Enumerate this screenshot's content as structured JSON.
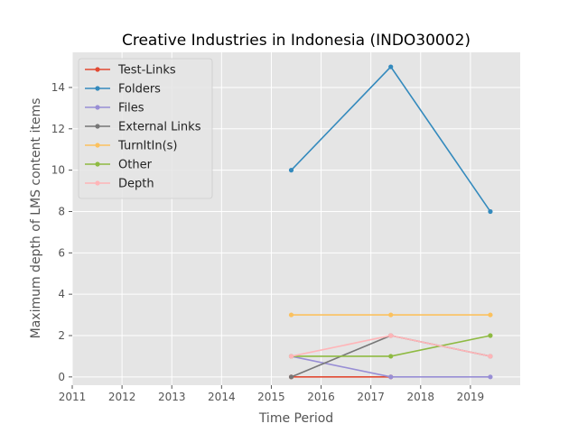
{
  "chart_data": {
    "type": "line",
    "title": "Creative Industries in Indonesia (INDO30002)",
    "xlabel": "Time Period",
    "ylabel": "Maximum depth of LMS content items",
    "xlim": [
      2011,
      2020
    ],
    "ylim": [
      -0.4,
      15.7
    ],
    "xticks": [
      2011,
      2012,
      2013,
      2014,
      2015,
      2016,
      2017,
      2018,
      2019
    ],
    "yticks": [
      0,
      2,
      4,
      6,
      8,
      10,
      12,
      14
    ],
    "grid": true,
    "legend_position": "top-left",
    "x": [
      2015.4,
      2017.4,
      2019.4
    ],
    "series": [
      {
        "name": "Test-Links",
        "color": "#E24A33",
        "x": [
          2015.4,
          2017.4
        ],
        "values": [
          0,
          0
        ]
      },
      {
        "name": "Folders",
        "color": "#348ABD",
        "x": [
          2015.4,
          2017.4,
          2019.4
        ],
        "values": [
          10,
          15,
          8
        ]
      },
      {
        "name": "Files",
        "color": "#988ED5",
        "x": [
          2015.4,
          2017.4,
          2019.4
        ],
        "values": [
          1,
          0,
          0
        ]
      },
      {
        "name": "External Links",
        "color": "#777777",
        "x": [
          2015.4,
          2017.4,
          2019.4
        ],
        "values": [
          0,
          2,
          1
        ]
      },
      {
        "name": "TurnItIn(s)",
        "color": "#FBC15E",
        "x": [
          2015.4,
          2017.4,
          2019.4
        ],
        "values": [
          3,
          3,
          3
        ]
      },
      {
        "name": "Other",
        "color": "#8EBA42",
        "x": [
          2015.4,
          2017.4,
          2019.4
        ],
        "values": [
          1,
          1,
          2
        ]
      },
      {
        "name": "Depth",
        "color": "#FFB5B8",
        "x": [
          2015.4,
          2017.4,
          2019.4
        ],
        "values": [
          1,
          2,
          1
        ]
      }
    ]
  }
}
